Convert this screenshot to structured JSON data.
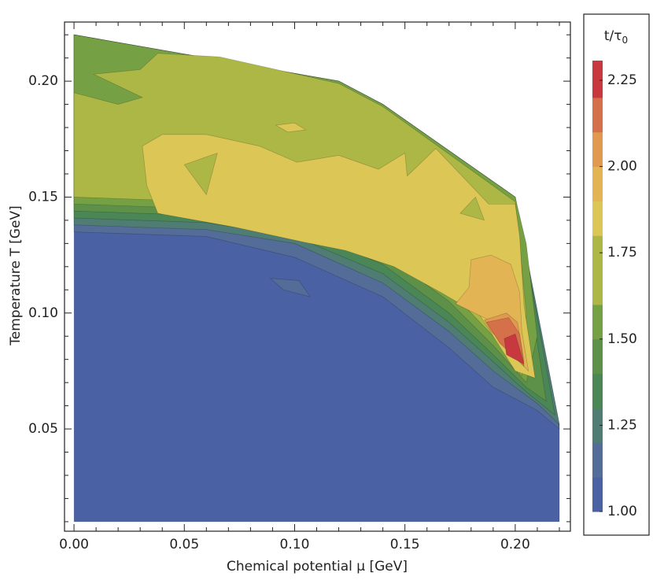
{
  "chart_data": {
    "type": "contour",
    "xlabel": "Chemical potential μ [GeV]",
    "ylabel": "Temperature T [GeV]",
    "colorbar_label": "t/τ",
    "colorbar_label_sub": "0",
    "xlim": [
      -0.0043,
      0.225
    ],
    "ylim": [
      0.0059,
      0.2255
    ],
    "clim": [
      1.0,
      2.307
    ],
    "xticks": [
      {
        "value": 0,
        "label": "0.00"
      },
      0.05,
      {
        "value": 0.1,
        "label": "0.10"
      },
      0.15,
      {
        "value": 0.2,
        "label": "0.20"
      }
    ],
    "xminorticks": [
      0.01,
      0.02,
      0.03,
      0.04,
      0.06,
      0.07,
      0.08,
      0.09,
      0.11,
      0.12,
      0.13,
      0.14,
      0.16,
      0.17,
      0.18,
      0.19,
      0.21,
      0.22
    ],
    "yticks": [
      0.05,
      {
        "value": 0.1,
        "label": "0.10"
      },
      0.15,
      {
        "value": 0.2,
        "label": "0.20"
      }
    ],
    "yminorticks": [
      0.01,
      0.02,
      0.03,
      0.04,
      0.06,
      0.07,
      0.08,
      0.09,
      0.11,
      0.12,
      0.13,
      0.14,
      0.16,
      0.17,
      0.18,
      0.19,
      0.21,
      0.22
    ],
    "cticks": [
      {
        "value": 1,
        "label": "1.00"
      },
      1.25,
      {
        "value": 1.5,
        "label": "1.50"
      },
      1.75,
      {
        "value": 2,
        "label": "2.00"
      },
      2.25
    ],
    "regions": [
      {
        "level": 1.0,
        "color": "#4a62a4",
        "x": [
          0,
          0.22,
          0.22,
          0.2,
          0.14,
          0.12,
          0
        ],
        "y": [
          0.01,
          0.01,
          0.052,
          0.15,
          0.19,
          0.2,
          0.22
        ]
      },
      {
        "level": 1.1,
        "color": "#536c98",
        "x": [
          0,
          0.06,
          0.1,
          0.14,
          0.17,
          0.19,
          0.21,
          0.22,
          0.2,
          0.14,
          0.12,
          0
        ],
        "y": [
          0.135,
          0.133,
          0.124,
          0.107,
          0.085,
          0.068,
          0.058,
          0.05,
          0.15,
          0.19,
          0.2,
          0.22
        ]
      },
      {
        "level": 1.2,
        "color": "#4f7c73",
        "x": [
          0,
          0.06,
          0.1,
          0.14,
          0.17,
          0.19,
          0.21,
          0.22,
          0.2,
          0.14,
          0.12,
          0
        ],
        "y": [
          0.138,
          0.136,
          0.13,
          0.113,
          0.092,
          0.075,
          0.061,
          0.052,
          0.15,
          0.19,
          0.2,
          0.22
        ]
      },
      {
        "level": 1.3,
        "color": "#4b8756",
        "x": [
          0,
          0.06,
          0.1,
          0.14,
          0.17,
          0.19,
          0.205,
          0.218,
          0.2,
          0.14,
          0.12,
          0
        ],
        "y": [
          0.141,
          0.139,
          0.133,
          0.117,
          0.096,
          0.079,
          0.066,
          0.056,
          0.15,
          0.19,
          0.2,
          0.22
        ]
      },
      {
        "level": 1.4,
        "color": "#5d9149",
        "x": [
          0,
          0.06,
          0.1,
          0.14,
          0.17,
          0.19,
          0.205,
          0.214,
          0.2,
          0.14,
          0.12,
          0
        ],
        "y": [
          0.144,
          0.142,
          0.137,
          0.121,
          0.1,
          0.082,
          0.068,
          0.062,
          0.15,
          0.19,
          0.2,
          0.22
        ]
      },
      {
        "level": 1.5,
        "color": "#76a044",
        "x": [
          0,
          0.06,
          0.1,
          0.14,
          0.17,
          0.19,
          0.205,
          0.21,
          0.205,
          0.2,
          0.14,
          0.12,
          0
        ],
        "y": [
          0.147,
          0.145,
          0.141,
          0.126,
          0.105,
          0.086,
          0.07,
          0.09,
          0.13,
          0.15,
          0.19,
          0.2,
          0.22
        ]
      },
      {
        "level": 1.6,
        "color": "#adb746",
        "x": [
          0,
          0.06,
          0.1,
          0.14,
          0.17,
          0.19,
          0.203,
          0.205,
          0.2,
          0.14,
          0.12,
          0.066,
          0.038,
          0.03,
          0.009,
          0.031,
          0.02,
          0
        ],
        "y": [
          0.15,
          0.148,
          0.145,
          0.13,
          0.11,
          0.09,
          0.073,
          0.1,
          0.148,
          0.189,
          0.199,
          0.2105,
          0.212,
          0.205,
          0.203,
          0.193,
          0.19,
          0.195
        ]
      },
      {
        "level": 1.8,
        "color": "#dcc656",
        "x": [
          0.031,
          0.04,
          0.06,
          0.084,
          0.101,
          0.12,
          0.138,
          0.15,
          0.151,
          0.164,
          0.188,
          0.2,
          0.202,
          0.204,
          0.209,
          0.2,
          0.184,
          0.166,
          0.145,
          0.123,
          0.102,
          0.073,
          0.038,
          0.033
        ],
        "y": [
          0.172,
          0.177,
          0.177,
          0.172,
          0.165,
          0.168,
          0.162,
          0.169,
          0.159,
          0.171,
          0.147,
          0.147,
          0.133,
          0.103,
          0.072,
          0.075,
          0.099,
          0.109,
          0.12,
          0.127,
          0.131,
          0.137,
          0.143,
          0.155
        ]
      },
      {
        "level": 1.9,
        "color": "#e3b454",
        "x": [
          0.18,
          0.189,
          0.198,
          0.202,
          0.203,
          0.206,
          0.195,
          0.188,
          0.173,
          0.179
        ],
        "y": [
          0.123,
          0.125,
          0.121,
          0.109,
          0.092,
          0.075,
          0.086,
          0.097,
          0.104,
          0.111
        ]
      },
      {
        "level": 2.0,
        "color": "#e0994f",
        "x": [
          0.186,
          0.196,
          0.201,
          0.204,
          0.195,
          0.189
        ],
        "y": [
          0.097,
          0.1,
          0.096,
          0.079,
          0.087,
          0.092
        ]
      },
      {
        "level": 2.1,
        "color": "#d5714a",
        "x": [
          0.187,
          0.197,
          0.202,
          0.204,
          0.193
        ],
        "y": [
          0.096,
          0.098,
          0.091,
          0.077,
          0.087
        ]
      },
      {
        "level": 2.2,
        "color": "#c8383f",
        "x": [
          0.195,
          0.2,
          0.204,
          0.196
        ],
        "y": [
          0.089,
          0.091,
          0.078,
          0.082
        ]
      },
      {
        "level": 1.6,
        "color": "#adb746",
        "x": [
          0.05,
          0.065,
          0.06
        ],
        "y": [
          0.164,
          0.169,
          0.151
        ]
      },
      {
        "level": 1.6,
        "color": "#adb746",
        "x": [
          0.175,
          0.182,
          0.186
        ],
        "y": [
          0.143,
          0.15,
          0.14
        ]
      },
      {
        "level": 1.8,
        "color": "#dcc656",
        "x": [
          0.0915,
          0.1,
          0.105,
          0.097
        ],
        "y": [
          0.181,
          0.182,
          0.179,
          0.178
        ]
      },
      {
        "level": 1.1,
        "color": "#536c98",
        "x": [
          0.089,
          0.102,
          0.107,
          0.095
        ],
        "y": [
          0.115,
          0.114,
          0.107,
          0.11
        ]
      }
    ]
  }
}
